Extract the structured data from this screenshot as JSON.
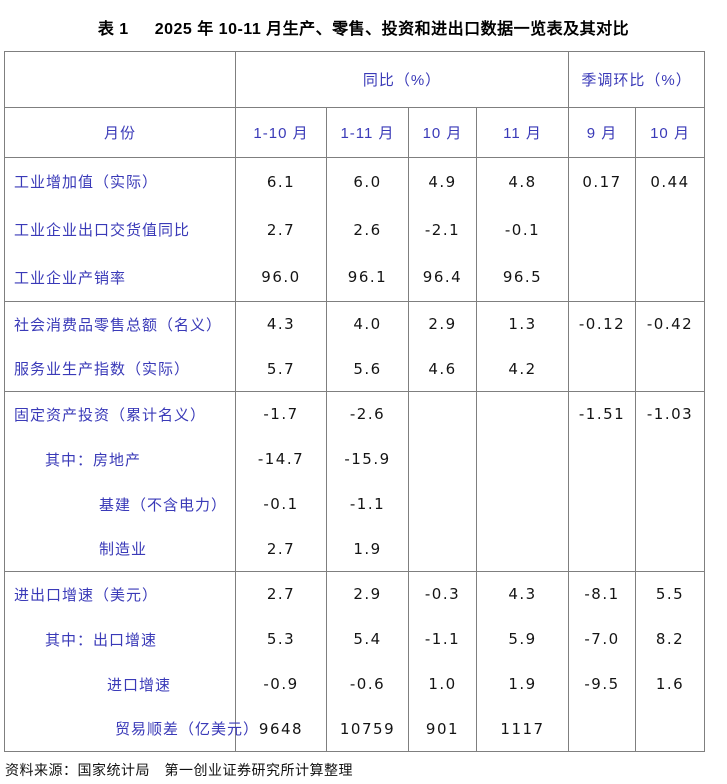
{
  "page": {
    "title_prefix": "表 1",
    "title_main": "2025 年 10-11 月生产、零售、投资和进出口数据一览表及其对比",
    "source_note": "资料来源：国家统计局　第一创业证券研究所计算整理"
  },
  "table": {
    "colors": {
      "label_blue": "#3a3ab8",
      "number_black": "#141414",
      "border_gray": "#7f7f7f"
    },
    "header_groups": [
      {
        "label": "",
        "colspan": 1
      },
      {
        "label": "同比（%）",
        "colspan": 4
      },
      {
        "label": "季调环比（%）",
        "colspan": 2
      }
    ],
    "columns": [
      "月份",
      "1-10 月",
      "1-11 月",
      "10 月",
      "11 月",
      "9 月",
      "10 月"
    ],
    "groups": [
      {
        "rows": [
          {
            "label": "工业增加值（实际）",
            "indent": 0,
            "values": [
              "6.1",
              "6.0",
              "4.9",
              "4.8",
              "0.17",
              "0.44"
            ]
          },
          {
            "label": "工业企业出口交货值同比",
            "indent": 0,
            "values": [
              "2.7",
              "2.6",
              "-2.1",
              "-0.1",
              "",
              ""
            ]
          },
          {
            "label": "工业企业产销率",
            "indent": 0,
            "values": [
              "96.0",
              "96.1",
              "96.4",
              "96.5",
              "",
              ""
            ]
          }
        ]
      },
      {
        "rows": [
          {
            "label": "社会消费品零售总额（名义）",
            "indent": 0,
            "values": [
              "4.3",
              "4.0",
              "2.9",
              "1.3",
              "-0.12",
              "-0.42"
            ]
          },
          {
            "label": "服务业生产指数（实际）",
            "indent": 0,
            "values": [
              "5.7",
              "5.6",
              "4.6",
              "4.2",
              "",
              ""
            ]
          }
        ]
      },
      {
        "rows": [
          {
            "label": "固定资产投资（累计名义）",
            "indent": 0,
            "values": [
              "-1.7",
              "-2.6",
              "",
              "",
              "-1.51",
              "-1.03"
            ]
          },
          {
            "label": "其中：房地产",
            "indent": 1,
            "values": [
              "-14.7",
              "-15.9",
              "",
              "",
              "",
              ""
            ]
          },
          {
            "label": "基建（不含电力）",
            "indent": 2,
            "values": [
              "-0.1",
              "-1.1",
              "",
              "",
              "",
              ""
            ]
          },
          {
            "label": "制造业",
            "indent": 2,
            "values": [
              "2.7",
              "1.9",
              "",
              "",
              "",
              ""
            ]
          }
        ]
      },
      {
        "rows": [
          {
            "label": "进出口增速（美元）",
            "indent": 0,
            "values": [
              "2.7",
              "2.9",
              "-0.3",
              "4.3",
              "-8.1",
              "5.5"
            ]
          },
          {
            "label": "其中：出口增速",
            "indent": 1,
            "values": [
              "5.3",
              "5.4",
              "-1.1",
              "5.9",
              "-7.0",
              "8.2"
            ]
          },
          {
            "label": "进口增速",
            "indent": 3,
            "values": [
              "-0.9",
              "-0.6",
              "1.0",
              "1.9",
              "-9.5",
              "1.6"
            ]
          },
          {
            "label": "贸易顺差（亿美元）",
            "indent": 4,
            "values": [
              "9648",
              "10759",
              "901",
              "1117",
              "",
              ""
            ]
          }
        ]
      }
    ]
  }
}
